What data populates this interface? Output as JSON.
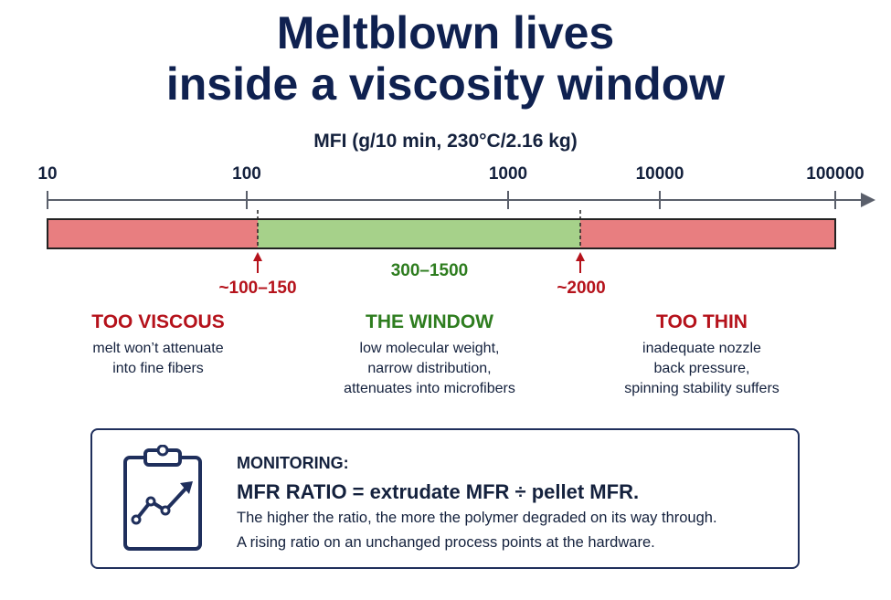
{
  "title": {
    "line1": "Meltblown lives",
    "line2": "inside a viscosity window"
  },
  "axis": {
    "title": "MFI (g/10 min, 230°C/2.16 kg)",
    "ticks": [
      {
        "label": "10",
        "value": 10
      },
      {
        "label": "100",
        "value": 100
      },
      {
        "label": "1000",
        "value": 1000
      },
      {
        "label": "10000",
        "value": 10000
      },
      {
        "label": "100000",
        "value": 100000
      }
    ]
  },
  "band": {
    "window_label": "300–1500",
    "lower_marker": "~100–150",
    "upper_marker": "~2000",
    "colors": {
      "too_viscous": "#e87e80",
      "window": "#a6d18a",
      "too_thin": "#e87e80"
    }
  },
  "zones": {
    "too_viscous": {
      "heading": "TOO VISCOUS",
      "desc": "melt won’t attenuate\ninto fine fibers"
    },
    "window": {
      "heading": "THE WINDOW",
      "desc": "low molecular weight,\nnarrow distribution,\nattenuates into microfibers"
    },
    "too_thin": {
      "heading": "TOO THIN",
      "desc": "inadequate nozzle\nback pressure,\nspinning stability suffers"
    }
  },
  "monitoring": {
    "icon": "clipboard-chart-icon",
    "heading": "MONITORING:",
    "formula": "MFR RATIO = extrudate MFR ÷ pellet MFR.",
    "line1": "The higher the ratio, the more the polymer degraded on its way through.",
    "line2": "A rising ratio on an unchanged process points at the hardware."
  }
}
